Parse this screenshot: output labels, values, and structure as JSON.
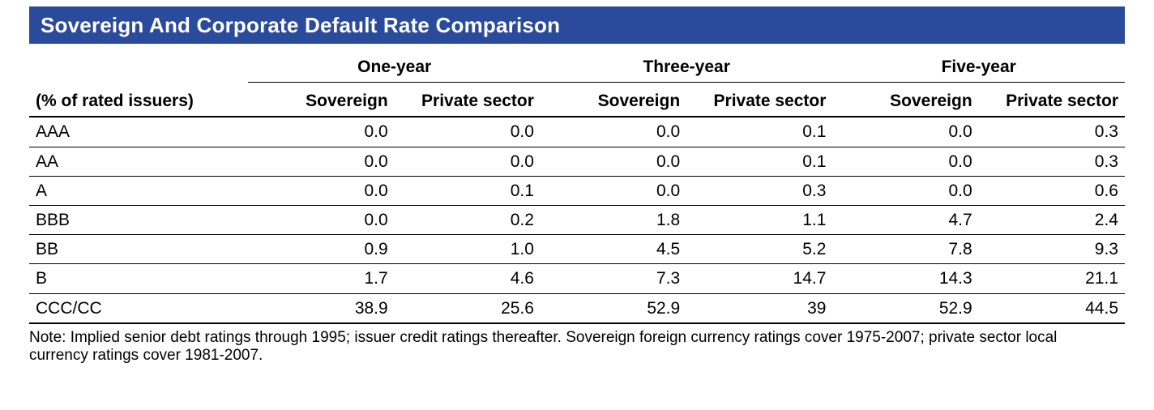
{
  "title": "Sovereign And Corporate Default Rate Comparison",
  "title_bg": "#2a4a9b",
  "title_color": "#ffffff",
  "title_fontsize": 26,
  "row_header_label": "(% of rated issuers)",
  "groups": [
    "One-year",
    "Three-year",
    "Five-year"
  ],
  "sub_columns": [
    "Sovereign",
    "Private sector"
  ],
  "rows": [
    {
      "label": "AAA",
      "values": [
        "0.0",
        "0.0",
        "0.0",
        "0.1",
        "0.0",
        "0.3"
      ]
    },
    {
      "label": "AA",
      "values": [
        "0.0",
        "0.0",
        "0.0",
        "0.1",
        "0.0",
        "0.3"
      ]
    },
    {
      "label": "A",
      "values": [
        "0.0",
        "0.1",
        "0.0",
        "0.3",
        "0.0",
        "0.6"
      ]
    },
    {
      "label": "BBB",
      "values": [
        "0.0",
        "0.2",
        "1.8",
        "1.1",
        "4.7",
        "2.4"
      ]
    },
    {
      "label": "BB",
      "values": [
        "0.9",
        "1.0",
        "4.5",
        "5.2",
        "7.8",
        "9.3"
      ]
    },
    {
      "label": "B",
      "values": [
        "1.7",
        "4.6",
        "7.3",
        "14.7",
        "14.3",
        "21.1"
      ]
    },
    {
      "label": "CCC/CC",
      "values": [
        "38.9",
        "25.6",
        "52.9",
        "39",
        "52.9",
        "44.5"
      ]
    }
  ],
  "note": "Note: Implied senior debt ratings through 1995; issuer credit ratings thereafter. Sovereign foreign currency ratings cover 1975-2007; private sector local currency ratings cover 1981-2007.",
  "body_fontsize": 21,
  "note_fontsize": 19,
  "rule_color": "#000000",
  "background_color": "#ffffff"
}
